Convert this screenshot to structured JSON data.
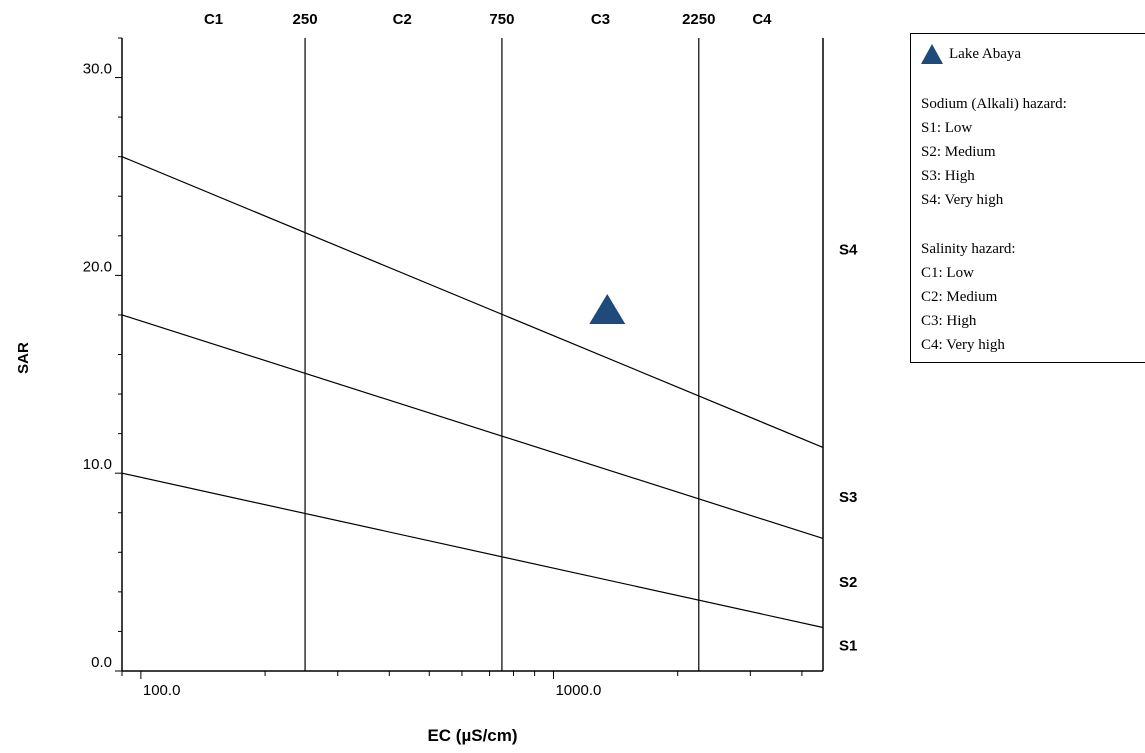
{
  "chart_data": {
    "type": "scatter",
    "xlabel": "EC (µS/cm)",
    "ylabel": "SAR",
    "x_scale": "log",
    "xlim": [
      90,
      4500
    ],
    "ylim": [
      0,
      32
    ],
    "x_ticks": [
      {
        "value": 100,
        "label": "100.0"
      },
      {
        "value": 1000,
        "label": "1000.0"
      }
    ],
    "y_ticks": [
      {
        "value": 0,
        "label": "0.0"
      },
      {
        "value": 10,
        "label": "10.0"
      },
      {
        "value": 20,
        "label": "20.0"
      },
      {
        "value": 30,
        "label": "30.0"
      }
    ],
    "salinity_boundaries": [
      {
        "value": 250,
        "label": "250"
      },
      {
        "value": 750,
        "label": "750"
      },
      {
        "value": 2250,
        "label": "2250"
      }
    ],
    "salinity_classes": [
      {
        "label": "C1",
        "x": 150
      },
      {
        "label": "C2",
        "x": 430
      },
      {
        "label": "C3",
        "x": 1300
      },
      {
        "label": "C4",
        "x": 3200
      }
    ],
    "sodium_lines": [
      {
        "points": [
          [
            90,
            10.0
          ],
          [
            4500,
            2.2
          ]
        ]
      },
      {
        "points": [
          [
            90,
            18.0
          ],
          [
            4500,
            6.7
          ]
        ]
      },
      {
        "points": [
          [
            90,
            26.0
          ],
          [
            4500,
            11.3
          ]
        ]
      }
    ],
    "sodium_classes": [
      {
        "label": "S1",
        "y": 1.3
      },
      {
        "label": "S2",
        "y": 4.5
      },
      {
        "label": "S3",
        "y": 8.8
      },
      {
        "label": "S4",
        "y": 21.3
      }
    ],
    "series": [
      {
        "name": "Lake Abaya",
        "marker": "triangle",
        "color": "#1f4a7a",
        "points": [
          [
            1350,
            18.3
          ]
        ]
      }
    ],
    "grid": false
  },
  "legend": {
    "series_label": "Lake Abaya",
    "sodium_title": "Sodium (Alkali) hazard:",
    "sodium_items": [
      "S1: Low",
      "S2: Medium",
      "S3: High",
      "S4: Very high"
    ],
    "salinity_title": "Salinity hazard:",
    "salinity_items": [
      "C1: Low",
      "C2: Medium",
      "C3: High",
      "C4: Very high"
    ]
  }
}
